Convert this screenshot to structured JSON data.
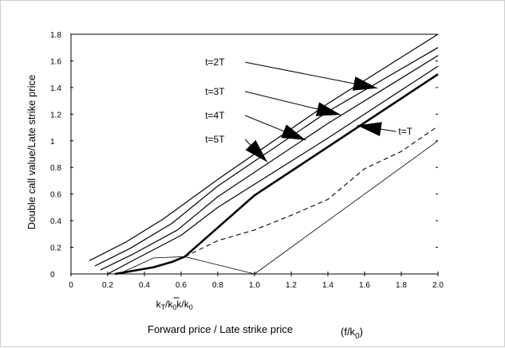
{
  "chart_data": {
    "type": "line",
    "xlabel": "Forward price / Late strike price",
    "xlabel_suffix": "(f/k",
    "xlabel_suffix_sub": "0",
    "xlabel_suffix_close": ")",
    "ylabel": "Double call value/Late strike price",
    "xlim": [
      0,
      2.0
    ],
    "ylim": [
      0,
      1.8
    ],
    "x_ticks": [
      0,
      0.2,
      0.4,
      0.6,
      0.8,
      1.0,
      1.2,
      1.4,
      1.6,
      1.8,
      2.0
    ],
    "x_tick_labels": [
      "0",
      "0.2",
      "0.4",
      "0.6",
      "0.8",
      "1.0",
      "1.2",
      "1.4",
      "1.6",
      "1.8",
      "2.0"
    ],
    "y_ticks": [
      0,
      0.2,
      0.4,
      0.6,
      0.8,
      1,
      1.2,
      1.4,
      1.6,
      1.8
    ],
    "y_tick_labels": [
      "0",
      "0.2",
      "0.4",
      "0.6",
      "0.8",
      "1",
      "1.2",
      "1.4",
      "1.6",
      "1.8"
    ],
    "special_x_labels": [
      {
        "x": 0.52,
        "main": "k",
        "sub1": "T",
        "mid": "/k",
        "sub2": "0",
        "bar": false
      },
      {
        "x": 0.62,
        "main": "k",
        "sub1": "",
        "mid": "/k",
        "sub2": "0",
        "bar": true
      }
    ],
    "series": [
      {
        "values": [
          [
            0.1,
            0.1
          ],
          [
            0.3,
            0.24
          ],
          [
            0.5,
            0.41
          ],
          [
            0.8,
            0.71
          ],
          [
            1.4,
            1.28
          ],
          [
            2.0,
            1.8
          ]
        ],
        "width": 1.2
      },
      {
        "values": [
          [
            0.13,
            0.06
          ],
          [
            0.32,
            0.19
          ],
          [
            0.55,
            0.38
          ],
          [
            0.8,
            0.66
          ],
          [
            1.4,
            1.22
          ],
          [
            2.0,
            1.7
          ]
        ],
        "width": 1.2
      },
      {
        "values": [
          [
            0.16,
            0.03
          ],
          [
            0.34,
            0.15
          ],
          [
            0.58,
            0.33
          ],
          [
            0.8,
            0.58
          ],
          [
            1.4,
            1.13
          ],
          [
            2.0,
            1.64
          ]
        ],
        "width": 1.2
      },
      {
        "values": [
          [
            0.2,
            0
          ],
          [
            0.35,
            0.11
          ],
          [
            0.6,
            0.29
          ],
          [
            0.8,
            0.5
          ],
          [
            1.4,
            1.02
          ],
          [
            2.0,
            1.56
          ]
        ],
        "width": 1.2
      },
      {
        "values": [
          [
            0.24,
            0
          ],
          [
            0.45,
            0.05
          ],
          [
            0.55,
            0.09
          ],
          [
            0.62,
            0.13
          ],
          [
            1.0,
            0.59
          ],
          [
            2.0,
            1.5
          ]
        ],
        "width": 2.6
      },
      {
        "values": [
          [
            0.62,
            0.13
          ],
          [
            0.8,
            0.25
          ],
          [
            1.0,
            0.33
          ],
          [
            1.2,
            0.44
          ],
          [
            1.4,
            0.56
          ],
          [
            1.6,
            0.79
          ],
          [
            1.8,
            0.92
          ],
          [
            2.0,
            1.11
          ]
        ],
        "width": 1.1,
        "dashed": true
      },
      {
        "values": [
          [
            0.26,
            0
          ],
          [
            0.45,
            0.12
          ],
          [
            0.62,
            0.13
          ],
          [
            1.0,
            0
          ],
          [
            2.0,
            1.0
          ]
        ],
        "width": 0.8
      }
    ],
    "annotations": [
      {
        "label": "t=2T",
        "lx": 0.94,
        "ly": 1.59,
        "ax": 1.67,
        "ay": 1.395
      },
      {
        "label": "t=3T",
        "lx": 0.94,
        "ly": 1.37,
        "ax": 1.47,
        "ay": 1.195
      },
      {
        "label": "t=4T",
        "lx": 0.94,
        "ly": 1.19,
        "ax": 1.28,
        "ay": 1.005
      },
      {
        "label": "t=5T",
        "lx": 0.94,
        "ly": 1.01,
        "ax": 1.07,
        "ay": 0.84
      },
      {
        "label": "t=T",
        "lx": 1.98,
        "ly": 1.07,
        "ax": 1.56,
        "ay": 1.115
      }
    ]
  }
}
